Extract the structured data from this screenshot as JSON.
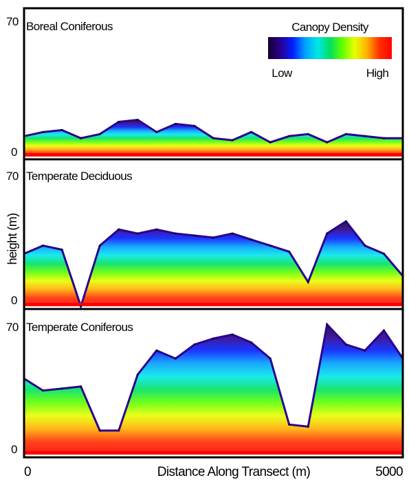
{
  "chart_data": {
    "type": "heatmap",
    "xlabel": "Distance Along Transect (m)",
    "ylabel": "height (m)",
    "xlim": [
      0,
      5000
    ],
    "x_ticks": [
      "0",
      "5000"
    ],
    "legend": {
      "title": "Canopy Density",
      "low_label": "Low",
      "high_label": "High",
      "colors": [
        "#14002a",
        "#2a0090",
        "#0020ff",
        "#00a0ff",
        "#00e8e8",
        "#00e060",
        "#60ff00",
        "#e8ff00",
        "#ffb000",
        "#ff3000",
        "#ff0000"
      ],
      "placement": "top-right"
    },
    "panels": [
      {
        "title": "Boreal Coniferous",
        "ylim": [
          0,
          70
        ],
        "y_ticks": [
          "0",
          "70"
        ],
        "canopy_profile": {
          "x": [
            0,
            250,
            500,
            750,
            1000,
            1250,
            1500,
            1750,
            2000,
            2250,
            2500,
            2750,
            3000,
            3250,
            3500,
            3750,
            4000,
            4250,
            4500,
            4750,
            5000
          ],
          "top_height": [
            10,
            12,
            13,
            9,
            11,
            17,
            18,
            12,
            16,
            15,
            9,
            8,
            12,
            7,
            10,
            11,
            7,
            11,
            10,
            9,
            9
          ]
        }
      },
      {
        "title": "Temperate Deciduous",
        "ylim": [
          0,
          70
        ],
        "y_ticks": [
          "0",
          "70"
        ],
        "canopy_profile": {
          "x": [
            0,
            250,
            500,
            750,
            1000,
            1250,
            1500,
            1750,
            2000,
            2250,
            2500,
            2750,
            3000,
            3250,
            3500,
            3750,
            4000,
            4250,
            4500,
            4750,
            5000
          ],
          "top_height": [
            26,
            30,
            28,
            0,
            30,
            38,
            36,
            38,
            36,
            35,
            34,
            36,
            33,
            30,
            27,
            12,
            36,
            42,
            30,
            26,
            15
          ]
        }
      },
      {
        "title": "Temperate Coniferous",
        "ylim": [
          0,
          70
        ],
        "y_ticks": [
          "0",
          "70"
        ],
        "canopy_profile": {
          "x": [
            0,
            250,
            500,
            750,
            1000,
            1250,
            1500,
            1750,
            2000,
            2250,
            2500,
            2750,
            3000,
            3250,
            3500,
            3750,
            4000,
            4250,
            4500,
            4750,
            5000
          ],
          "top_height": [
            38,
            32,
            33,
            34,
            12,
            12,
            40,
            52,
            48,
            55,
            58,
            60,
            56,
            48,
            15,
            14,
            65,
            55,
            52,
            62,
            48
          ]
        }
      }
    ]
  }
}
